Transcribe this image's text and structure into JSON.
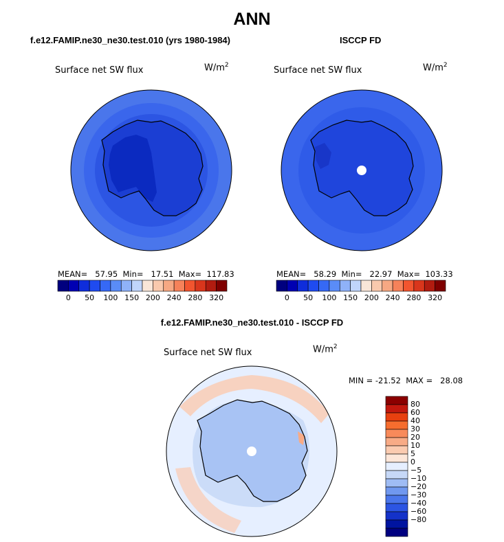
{
  "figure_title": "ANN",
  "panel1": {
    "case_title": "f.e12.FAMIP.ne30_ne30.test.010 (yrs 1980-1984)",
    "variable": "Surface net SW flux",
    "units_base": "W/m",
    "units_exp": "2",
    "stats": "MEAN=   57.95  Min=   17.51  Max=  117.83"
  },
  "panel2": {
    "case_title": "ISCCP FD",
    "variable": "Surface net SW flux",
    "units_base": "W/m",
    "units_exp": "2",
    "stats": "MEAN=   58.29  Min=   22.97  Max=  103.33"
  },
  "panel3": {
    "case_title": "f.e12.FAMIP.ne30_ne30.test.010 - ISCCP FD",
    "variable": "Surface net SW flux",
    "units_base": "W/m",
    "units_exp": "2",
    "minmax": "MIN = -21.52  MAX =   28.08"
  },
  "abs_colorbar": {
    "colors": [
      "#00007f",
      "#0000b2",
      "#0f2ddb",
      "#1f4bf0",
      "#3669f5",
      "#5a8cf7",
      "#8fb2f8",
      "#c0d5fb",
      "#f9e6d8",
      "#f9c9ad",
      "#f6a883",
      "#f6825a",
      "#f2552f",
      "#d9361c",
      "#b21c10",
      "#7f0000"
    ],
    "labels": [
      "0",
      "50",
      "100",
      "150",
      "200",
      "240",
      "280",
      "320"
    ]
  },
  "diff_colorbar": {
    "colors": [
      "#8b0000",
      "#c2180e",
      "#e8400f",
      "#f66d2e",
      "#f88a5a",
      "#f8ab86",
      "#fbcbb0",
      "#fde6d8",
      "#e6efff",
      "#c6d8f7",
      "#9fbcf4",
      "#7098ef",
      "#4a76eb",
      "#2c55e3",
      "#1432c9",
      "#0014a0",
      "#000080"
    ],
    "labels": [
      "80",
      "60",
      "40",
      "30",
      "20",
      "10",
      "5",
      "0",
      "−5",
      "−10",
      "−20",
      "−30",
      "−40",
      "−60",
      "−80"
    ]
  },
  "colors": {
    "p1_ocean": "#3a66ec",
    "p1_ring_inner": "#2c55e3",
    "p1_ring_outer": "#4a76eb",
    "p1_land": "#1b3ed3",
    "p1_interior": "#0b2ac0",
    "p2_ocean": "#2f5be8",
    "p2_ring_inner": "#2c55e3",
    "p2_land": "#1f45dc",
    "p3_ocean": "#d7e4fb",
    "p3_land": "#a8c3f4",
    "p3_warm": "#fbcbb0"
  }
}
